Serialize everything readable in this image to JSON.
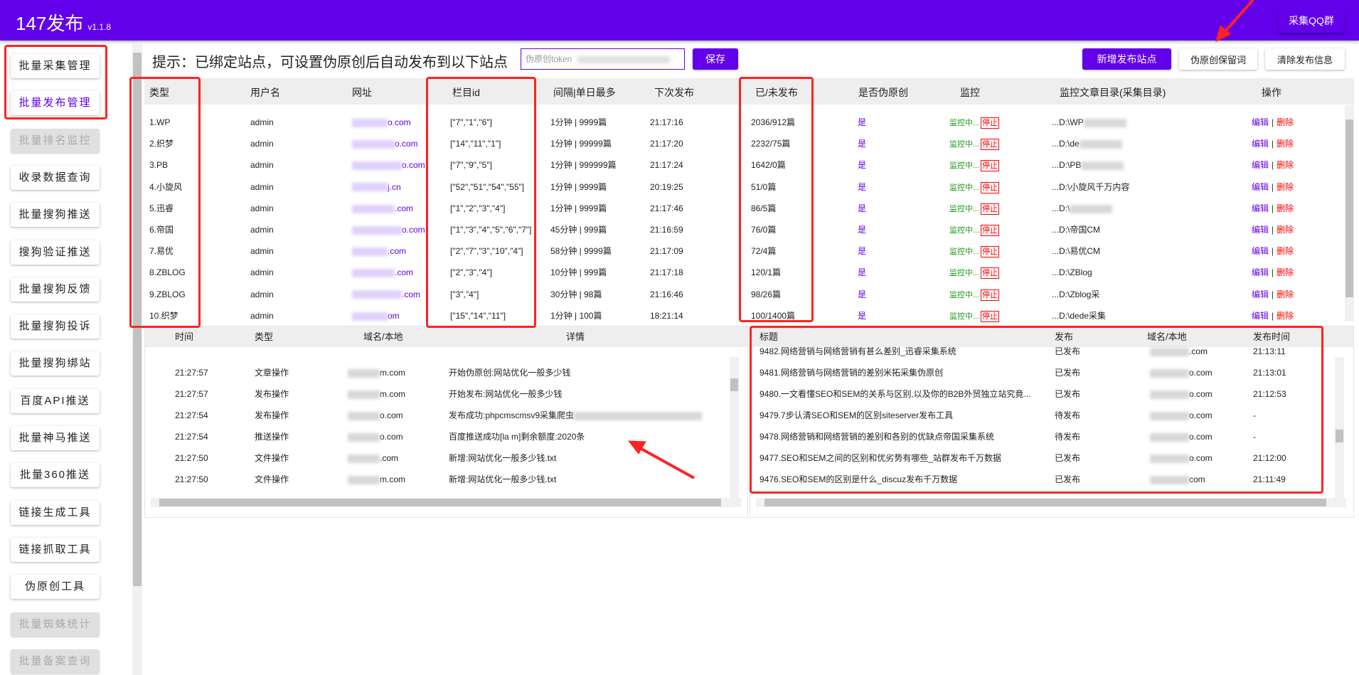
{
  "app": {
    "title": "147发布",
    "version": "v1.1.8",
    "qq_button": "采集QQ群"
  },
  "colors": {
    "brand": "#6200ea",
    "annotation": "#ff2222",
    "monitor": "#1a9a1a",
    "danger": "#ff0000"
  },
  "sidebar": {
    "items": [
      {
        "label": "批量采集管理",
        "state": "normal"
      },
      {
        "label": "批量发布管理",
        "state": "active"
      },
      {
        "label": "批量排名监控",
        "state": "disabled"
      },
      {
        "label": "收录数据查询",
        "state": "normal"
      },
      {
        "label": "批量搜狗推送",
        "state": "normal"
      },
      {
        "label": "搜狗验证推送",
        "state": "normal"
      },
      {
        "label": "批量搜狗反馈",
        "state": "normal"
      },
      {
        "label": "批量搜狗投诉",
        "state": "normal"
      },
      {
        "label": "批量搜狗绑站",
        "state": "normal"
      },
      {
        "label": "百度API推送",
        "state": "normal"
      },
      {
        "label": "批量神马推送",
        "state": "normal"
      },
      {
        "label": "批量360推送",
        "state": "normal"
      },
      {
        "label": "链接生成工具",
        "state": "normal"
      },
      {
        "label": "链接抓取工具",
        "state": "normal"
      },
      {
        "label": "伪原创工具",
        "state": "normal"
      },
      {
        "label": "批量蜘蛛统计",
        "state": "disabled"
      },
      {
        "label": "批量备案查询",
        "state": "disabled"
      }
    ]
  },
  "toolbar": {
    "hint": "提示：已绑定站点，可设置伪原创后自动发布到以下站点",
    "token_placeholder": "伪原创token",
    "save": "保存",
    "add_site": "新增发布站点",
    "keep_words": "伪原创保留词",
    "clear_info": "清除发布信息"
  },
  "sites": {
    "headers": [
      "类型",
      "用户名",
      "网址",
      "栏目id",
      "间隔|单日最多",
      "下次发布",
      "已/未发布",
      "是否伪原创",
      "监控",
      "监控文章目录(采集目录)",
      "操作"
    ],
    "monitor_label": "监控中...",
    "stop_label": "停止",
    "edit_label": "编辑",
    "delete_label": "删除",
    "sep": "|",
    "rows": [
      {
        "type": "1.WP",
        "user": "admin",
        "url": "o.com",
        "ids": "[\"7\",\"1\",\"6\"]",
        "interval": "1分钟 | 9999篇",
        "next": "21:17:16",
        "count": "2036/912篇",
        "pseudo": "是",
        "dir": "...D:\\WP"
      },
      {
        "type": "2.织梦",
        "user": "admin",
        "url": "o.com",
        "ids": "[\"14\",\"11\",\"1\"]",
        "interval": "1分钟 | 99999篇",
        "next": "21:17:20",
        "count": "2232/75篇",
        "pseudo": "是",
        "dir": "...D:\\de"
      },
      {
        "type": "3.PB",
        "user": "admin",
        "url": "o.com",
        "ids": "[\"7\",\"9\",\"5\"]",
        "interval": "1分钟 | 999999篇",
        "next": "21:17:24",
        "count": "1642/0篇",
        "pseudo": "是",
        "dir": "...D:\\PB"
      },
      {
        "type": "4.小旋风",
        "user": "admin",
        "url": "j.cn",
        "ids": "[\"52\",\"51\",\"54\",\"55\"]",
        "interval": "1分钟 | 9999篇",
        "next": "20:19:25",
        "count": "51/0篇",
        "pseudo": "是",
        "dir": "...D:\\小旋风千万内容"
      },
      {
        "type": "5.迅睿",
        "user": "admin",
        "url": ".com",
        "ids": "[\"1\",\"2\",\"3\",\"4\"]",
        "interval": "1分钟 | 9999篇",
        "next": "21:17:46",
        "count": "86/5篇",
        "pseudo": "是",
        "dir": "...D:\\"
      },
      {
        "type": "6.帝国",
        "user": "admin",
        "url": "o.com",
        "ids": "[\"1\",\"3\",\"4\",\"5\",\"6\",\"7\"]",
        "interval": "45分钟 | 999篇",
        "next": "21:16:59",
        "count": "76/0篇",
        "pseudo": "是",
        "dir": "...D:\\帝国CM"
      },
      {
        "type": "7.易优",
        "user": "admin",
        "url": ".com",
        "ids": "[\"2\",\"7\",\"3\",\"10\",\"4\"]",
        "interval": "58分钟 | 9999篇",
        "next": "21:17:09",
        "count": "72/4篇",
        "pseudo": "是",
        "dir": "...D:\\易优CM"
      },
      {
        "type": "8.ZBLOG",
        "user": "admin",
        "url": ".com",
        "ids": "[\"2\",\"3\",\"4\"]",
        "interval": "10分钟 | 999篇",
        "next": "21:17:18",
        "count": "120/1篇",
        "pseudo": "是",
        "dir": "...D:\\ZBlog"
      },
      {
        "type": "9.ZBLOG",
        "user": "admin",
        "url": ".com",
        "ids": "[\"3\",\"4\"]",
        "interval": "30分钟 | 98篇",
        "next": "21:16:46",
        "count": "98/26篇",
        "pseudo": "是",
        "dir": "...D:\\Zblog采"
      },
      {
        "type": "10.织梦",
        "user": "admin",
        "url": "om",
        "ids": "[\"15\",\"14\",\"11\"]",
        "interval": "1分钟 | 100篇",
        "next": "18:21:14",
        "count": "100/1400篇",
        "pseudo": "是",
        "dir": "...D:\\dede采集"
      }
    ]
  },
  "log": {
    "headers": [
      "时间",
      "类型",
      "域名/本地",
      "详情"
    ],
    "rows": [
      {
        "time": "21:27:57",
        "type": "文章操作",
        "domain": "m.com",
        "detail": "开始伪原创:网站优化一般多少钱"
      },
      {
        "time": "21:27:57",
        "type": "发布操作",
        "domain": "m.com",
        "detail": "开始发布:网站优化一般多少钱"
      },
      {
        "time": "21:27:54",
        "type": "发布操作",
        "domain": "o.com",
        "detail": "发布成功:phpcmscmsv9采集爬虫"
      },
      {
        "time": "21:27:54",
        "type": "推送操作",
        "domain": "o.com",
        "detail": "百度推送成功[la        m]剩余额度:2020条"
      },
      {
        "time": "21:27:50",
        "type": "文件操作",
        "domain": ".com",
        "detail": "新增:网站优化一般多少钱.txt"
      },
      {
        "time": "21:27:50",
        "type": "文件操作",
        "domain": "m.com",
        "detail": "新增:网站优化一般多少钱.txt"
      }
    ]
  },
  "articles": {
    "headers": [
      "标题",
      "发布",
      "域名/本地",
      "发布时间"
    ],
    "rows": [
      {
        "title": "9482.网络营销与网络营销有甚么差别_迅睿采集系统",
        "status": "已发布",
        "domain": ".com",
        "time": "21:13:11"
      },
      {
        "title": "9481.网络营销与网络营销的差别米拓采集伪原创",
        "status": "已发布",
        "domain": "o.com",
        "time": "21:13:01"
      },
      {
        "title": "9480.一文看懂SEO和SEM的关系与区别,以及你的B2B外贸独立站究竟...",
        "status": "已发布",
        "domain": "o.com",
        "time": "21:12:53"
      },
      {
        "title": "9479.7步认清SEO和SEM的区别siteserver发布工具",
        "status": "待发布",
        "domain": "o.com",
        "time": "-"
      },
      {
        "title": "9478.网络营销和网络营销的差别和各别的优缺点帝国采集系统",
        "status": "待发布",
        "domain": "o.com",
        "time": "-"
      },
      {
        "title": "9477.SEO和SEM之间的区别和优劣势有哪些_站群发布千万数据",
        "status": "已发布",
        "domain": "o.com",
        "time": "21:12:00"
      },
      {
        "title": "9476.SEO和SEM的区别是什么_discuz发布千万数据",
        "status": "已发布",
        "domain": "com",
        "time": "21:11:49"
      }
    ]
  }
}
